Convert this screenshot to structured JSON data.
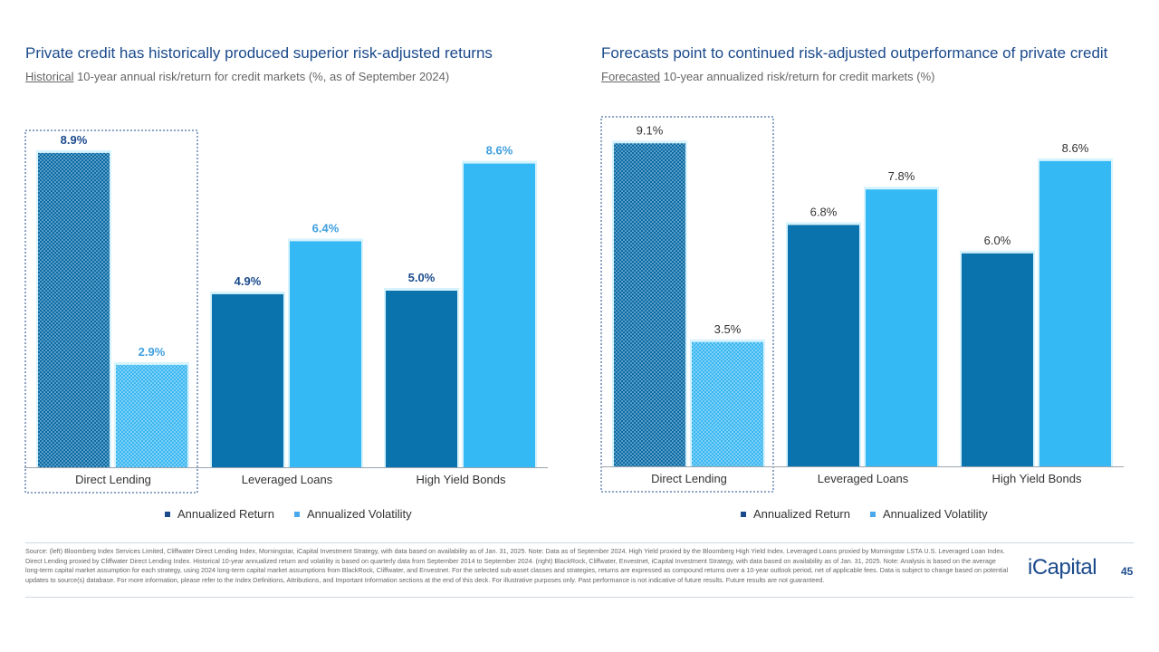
{
  "left": {
    "title": "Private credit has historically produced superior risk-adjusted returns",
    "subtitle_underlined": "Historical",
    "subtitle_rest": " 10-year annual risk/return for credit markets (%, as of September 2024)"
  },
  "right": {
    "title": "Forecasts point to continued risk-adjusted outperformance of private credit",
    "subtitle_underlined": "Forecasted",
    "subtitle_rest": " 10-year annualized risk/return for credit markets (%)"
  },
  "legend": {
    "return_label": "Annualized Return",
    "volatility_label": "Annualized Volatility"
  },
  "colors": {
    "return": "#0a72ad",
    "volatility": "#34b9f5",
    "highlight_border": "#1b4a8c",
    "title": "#1b4a8c"
  },
  "chart_data": [
    {
      "type": "bar",
      "title": "Private credit has historically produced superior risk-adjusted returns",
      "categories": [
        "Direct Lending",
        "Leveraged Loans",
        "High Yield Bonds"
      ],
      "series": [
        {
          "name": "Annualized Return",
          "values": [
            8.9,
            4.9,
            5.0
          ],
          "labels": [
            "8.9%",
            "4.9%",
            "5.0%"
          ]
        },
        {
          "name": "Annualized Volatility",
          "values": [
            2.9,
            6.4,
            8.6
          ],
          "labels": [
            "2.9%",
            "6.4%",
            "8.6%"
          ]
        }
      ],
      "ylim": [
        0,
        10
      ],
      "highlight_category": "Direct Lending",
      "legend": "bottom-center",
      "grid": false
    },
    {
      "type": "bar",
      "title": "Forecasts point to continued risk-adjusted outperformance of private credit",
      "categories": [
        "Direct Lending",
        "Leveraged Loans",
        "High Yield Bonds"
      ],
      "series": [
        {
          "name": "Annualized Return",
          "values": [
            9.1,
            6.8,
            6.0
          ],
          "labels": [
            "9.1%",
            "6.8%",
            "6.0%"
          ]
        },
        {
          "name": "Annualized Volatility",
          "values": [
            3.5,
            7.8,
            8.6
          ],
          "labels": [
            "3.5%",
            "7.8%",
            "8.6%"
          ]
        }
      ],
      "ylim": [
        0,
        10
      ],
      "highlight_category": "Direct Lending",
      "legend": "bottom-center",
      "grid": false
    }
  ],
  "footer": {
    "source": "Source: (left) Bloomberg Index Services Limited, Cliffwater Direct Lending Index, Morningstar, iCapital Investment Strategy, with data based on availability as of Jan. 31, 2025. Note: Data as of September 2024. High Yield proxied by the Bloomberg High Yield Index. Leveraged Loans proxied by Morningstar LSTA U.S. Leveraged Loan Index. Direct Lending proxied by Cliffwater Direct Lending Index. Historical 10-year annualized return and volatility is based on quarterly data from September 2014 to September 2024. (right) BlackRock, Cliffwater, Envestnet, iCapital Investment Strategy, with data based on availability as of Jan. 31, 2025. Note: Analysis is based on the average long-term capital market assumption for each strategy, using 2024 long-term capital market assumptions from BlackRock, Cliffwater, and Envestnet. For the selected sub-asset classes and strategies, returns are expressed as compound returns over a 10-year outlook period, net of applicable fees. Data is subject to change based on potential updates to source(s) database. For more information, please refer to the Index Definitions, Attributions, and Important Information sections at the end of this deck. For illustrative purposes only. Past performance is not indicative of future results. Future results are not guaranteed.",
    "logo": "iCapital",
    "page_number": "45"
  }
}
